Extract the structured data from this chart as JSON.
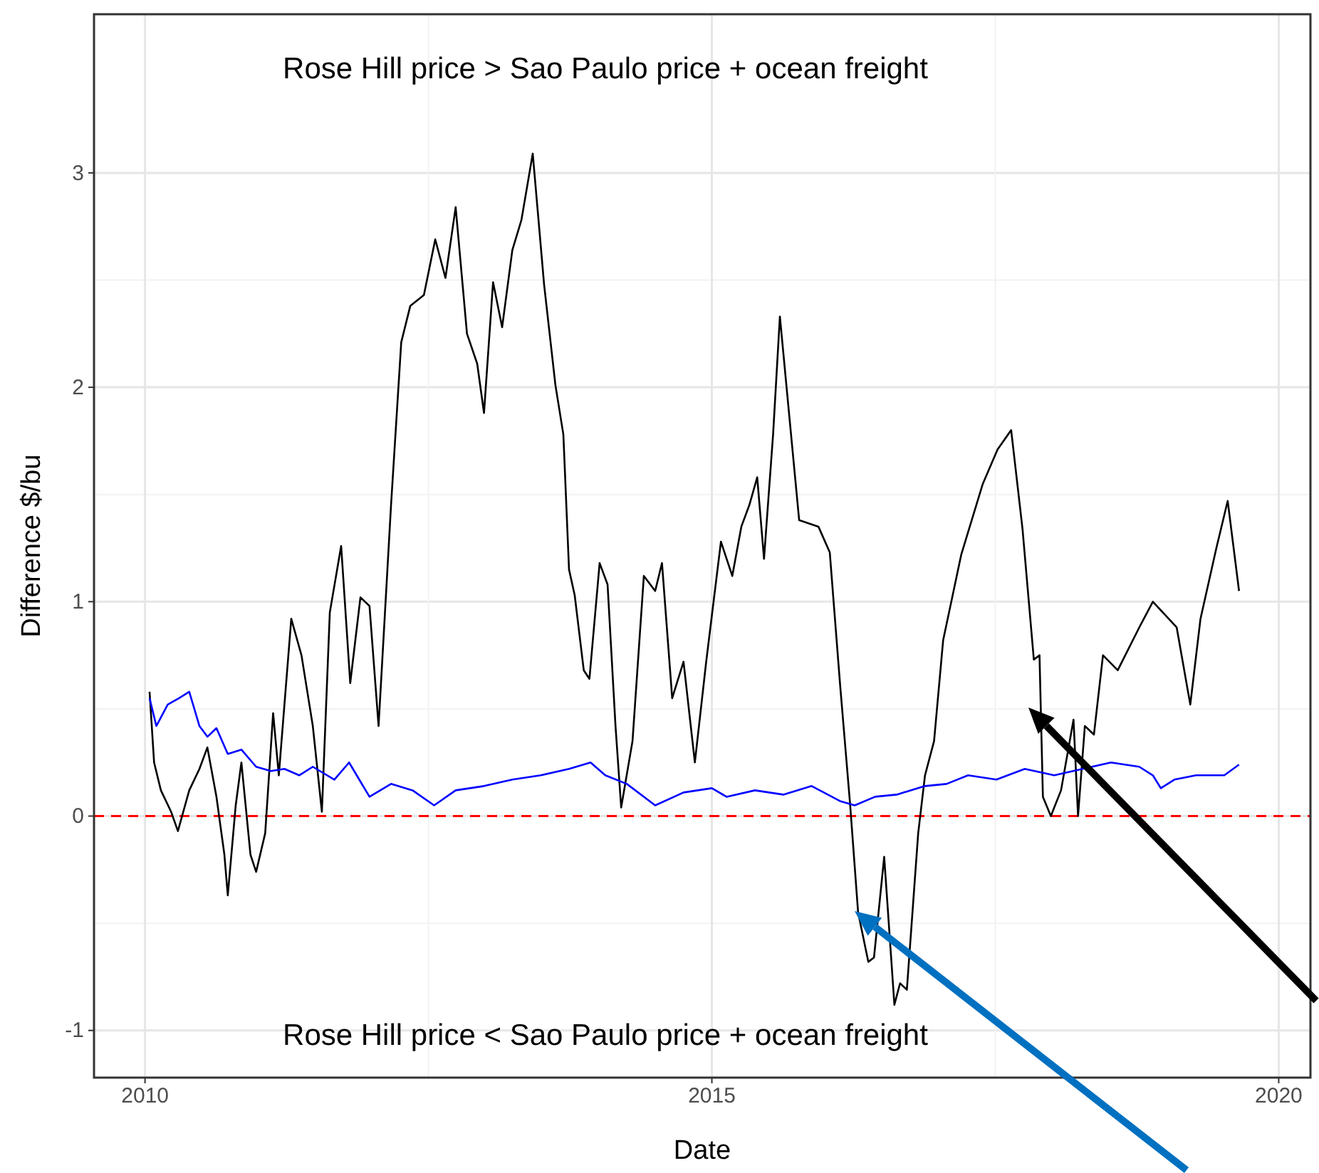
{
  "chart_data": {
    "type": "line",
    "xlabel": "Date",
    "ylabel": "Difference $/bu",
    "annotations": [
      "Rose Hill price > Sao Paulo price + ocean freight",
      "Rose Hill price < Sao Paulo price + ocean freight"
    ],
    "xlim": [
      2009.55,
      2020.28
    ],
    "xticks": [
      2010,
      2015,
      2020
    ],
    "ylim": [
      -1.22,
      3.74
    ],
    "yticks": [
      -1,
      0,
      1,
      2,
      3
    ],
    "grid": true,
    "line_style": "solid",
    "marker": "none",
    "ref_lines": [
      {
        "axis": "y",
        "value": 0,
        "color": "#ff0000",
        "line_style": "dashed"
      }
    ],
    "series": [
      {
        "color": "#000000",
        "x": [
          2010.04,
          2010.08,
          2010.14,
          2010.23,
          2010.29,
          2010.39,
          2010.48,
          2010.55,
          2010.63,
          2010.7,
          2010.73,
          2010.8,
          2010.85,
          2010.93,
          2010.98,
          2011.06,
          2011.13,
          2011.18,
          2011.29,
          2011.38,
          2011.48,
          2011.56,
          2011.63,
          2011.73,
          2011.81,
          2011.9,
          2011.98,
          2012.06,
          2012.17,
          2012.26,
          2012.34,
          2012.46,
          2012.56,
          2012.65,
          2012.74,
          2012.84,
          2012.93,
          2012.99,
          2013.07,
          2013.15,
          2013.24,
          2013.32,
          2013.42,
          2013.52,
          2013.62,
          2013.69,
          2013.74,
          2013.79,
          2013.87,
          2013.92,
          2014.01,
          2014.08,
          2014.15,
          2014.2,
          2014.3,
          2014.4,
          2014.5,
          2014.56,
          2014.65,
          2014.75,
          2014.85,
          2014.95,
          2015.08,
          2015.18,
          2015.26,
          2015.33,
          2015.4,
          2015.46,
          2015.54,
          2015.6,
          2015.65,
          2015.77,
          2015.94,
          2016.04,
          2016.13,
          2016.22,
          2016.29,
          2016.38,
          2016.43,
          2016.52,
          2016.61,
          2016.66,
          2016.72,
          2016.82,
          2016.88,
          2016.96,
          2017.04,
          2017.2,
          2017.39,
          2017.52,
          2017.64,
          2017.74,
          2017.84,
          2017.89,
          2017.92,
          2017.99,
          2018.08,
          2018.19,
          2018.23,
          2018.29,
          2018.37,
          2018.45,
          2018.58,
          2018.77,
          2018.89,
          2019.1,
          2019.22,
          2019.31,
          2019.45,
          2019.55,
          2019.65
        ],
        "values": [
          0.58,
          0.25,
          0.12,
          0.02,
          -0.07,
          0.12,
          0.22,
          0.32,
          0.09,
          -0.18,
          -0.37,
          0.05,
          0.25,
          -0.18,
          -0.26,
          -0.08,
          0.48,
          0.19,
          0.92,
          0.75,
          0.42,
          0.02,
          0.95,
          1.26,
          0.62,
          1.02,
          0.98,
          0.42,
          1.45,
          2.21,
          2.38,
          2.43,
          2.69,
          2.51,
          2.84,
          2.25,
          2.11,
          1.88,
          2.49,
          2.28,
          2.64,
          2.78,
          3.09,
          2.48,
          2.01,
          1.78,
          1.15,
          1.03,
          0.68,
          0.64,
          1.18,
          1.08,
          0.42,
          0.04,
          0.35,
          1.12,
          1.05,
          1.18,
          0.55,
          0.72,
          0.25,
          0.72,
          1.28,
          1.12,
          1.35,
          1.45,
          1.58,
          1.2,
          1.78,
          2.33,
          2.05,
          1.38,
          1.35,
          1.23,
          0.62,
          0.05,
          -0.45,
          -0.68,
          -0.66,
          -0.19,
          -0.88,
          -0.78,
          -0.81,
          -0.08,
          0.19,
          0.35,
          0.82,
          1.22,
          1.55,
          1.71,
          1.8,
          1.34,
          0.73,
          0.75,
          0.09,
          0.0,
          0.12,
          0.45,
          0.0,
          0.42,
          0.38,
          0.75,
          0.68,
          0.88,
          1.0,
          0.88,
          0.52,
          0.92,
          1.25,
          1.47,
          1.05
        ]
      },
      {
        "color": "#0000ff",
        "x": [
          2010.04,
          2010.1,
          2010.2,
          2010.3,
          2010.39,
          2010.48,
          2010.55,
          2010.63,
          2010.73,
          2010.85,
          2010.98,
          2011.11,
          2011.23,
          2011.36,
          2011.48,
          2011.67,
          2011.8,
          2011.98,
          2012.17,
          2012.36,
          2012.55,
          2012.74,
          2012.99,
          2013.24,
          2013.49,
          2013.74,
          2013.93,
          2014.06,
          2014.25,
          2014.5,
          2014.75,
          2015.0,
          2015.13,
          2015.38,
          2015.63,
          2015.88,
          2016.13,
          2016.26,
          2016.44,
          2016.63,
          2016.88,
          2017.07,
          2017.26,
          2017.51,
          2017.76,
          2018.02,
          2018.27,
          2018.52,
          2018.77,
          2018.89,
          2018.96,
          2019.08,
          2019.27,
          2019.52,
          2019.65
        ],
        "values": [
          0.55,
          0.42,
          0.52,
          0.55,
          0.58,
          0.42,
          0.37,
          0.41,
          0.29,
          0.31,
          0.23,
          0.21,
          0.22,
          0.19,
          0.23,
          0.17,
          0.25,
          0.09,
          0.15,
          0.12,
          0.05,
          0.12,
          0.14,
          0.17,
          0.19,
          0.22,
          0.25,
          0.19,
          0.15,
          0.05,
          0.11,
          0.13,
          0.09,
          0.12,
          0.1,
          0.14,
          0.07,
          0.05,
          0.09,
          0.1,
          0.14,
          0.15,
          0.19,
          0.17,
          0.22,
          0.19,
          0.22,
          0.25,
          0.23,
          0.19,
          0.13,
          0.17,
          0.19,
          0.19,
          0.24
        ]
      }
    ]
  }
}
